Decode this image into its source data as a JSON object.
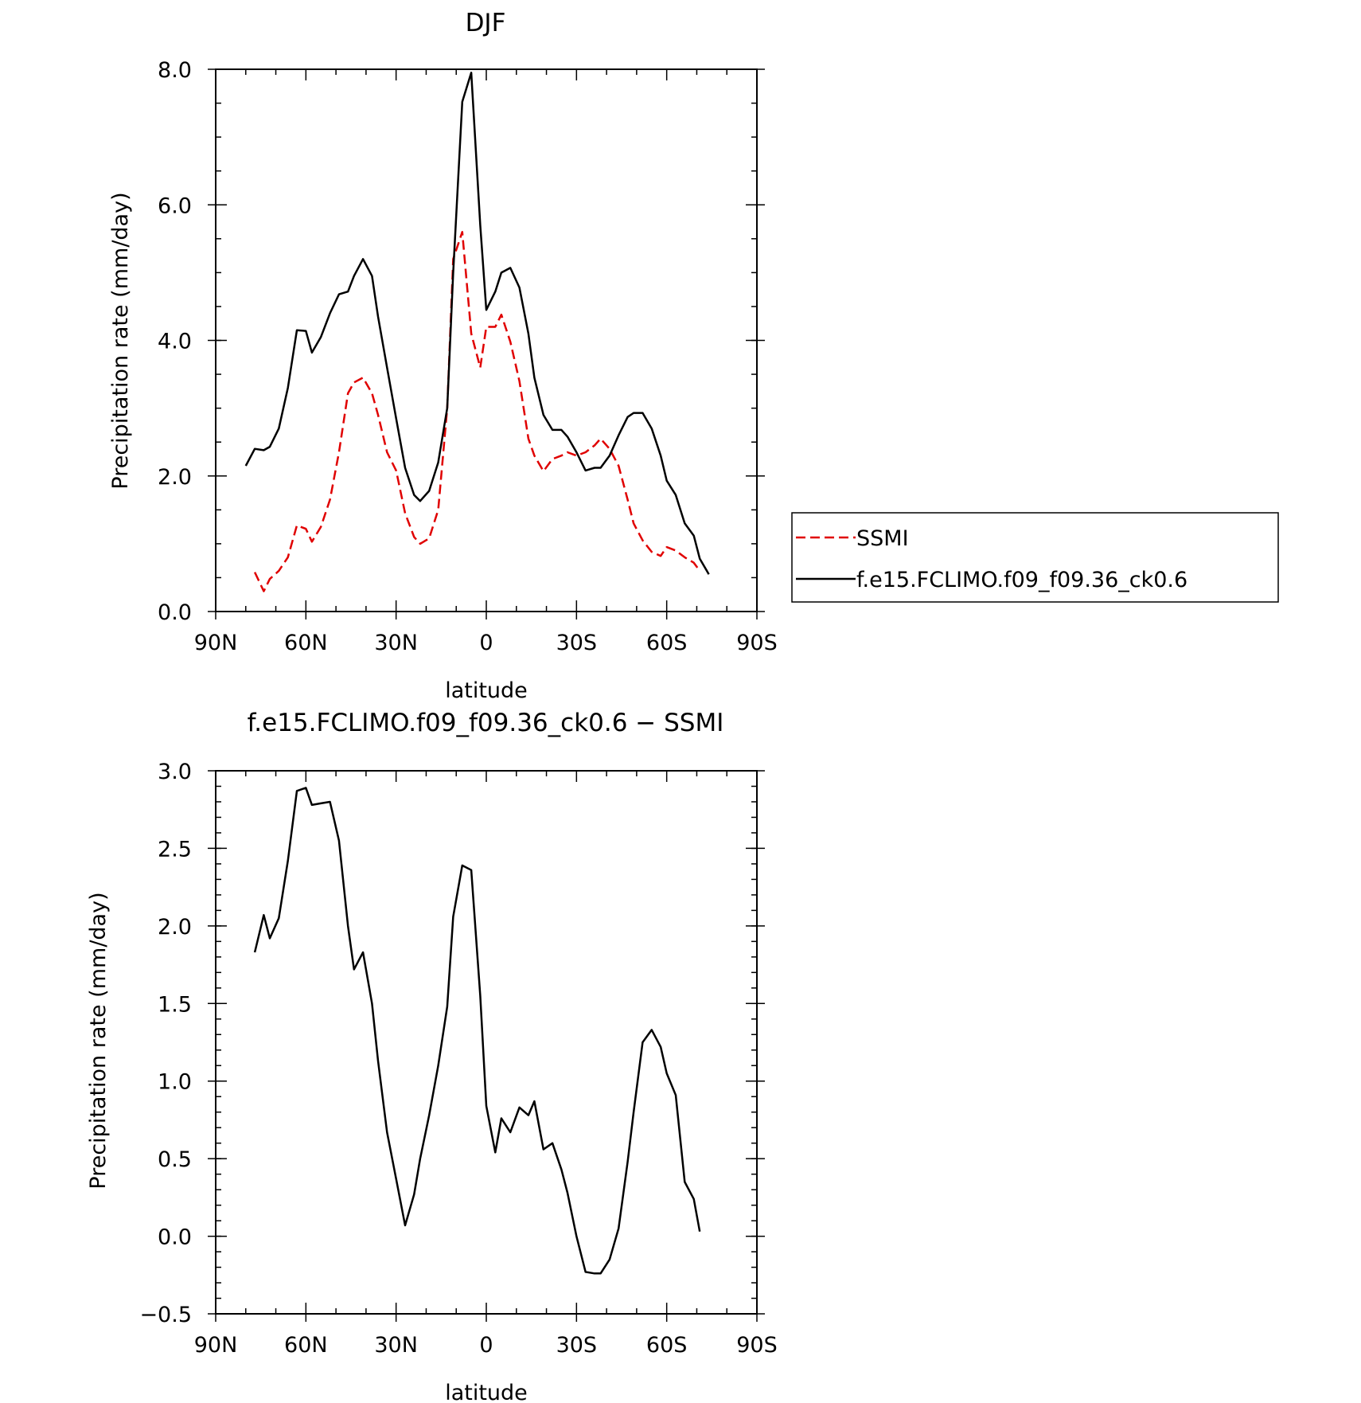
{
  "chart_data": [
    {
      "type": "line",
      "title": "DJF",
      "xlabel": "latitude",
      "ylabel": "Precipitation rate (mm/day)",
      "xlim": [
        -90,
        90
      ],
      "ylim": [
        0,
        8
      ],
      "xticks": [
        {
          "value": -90,
          "label": "90N"
        },
        {
          "value": -60,
          "label": "60N"
        },
        {
          "value": -30,
          "label": "30N"
        },
        {
          "value": 0,
          "label": "0"
        },
        {
          "value": 30,
          "label": "30S"
        },
        {
          "value": 60,
          "label": "60S"
        },
        {
          "value": 90,
          "label": "90S"
        }
      ],
      "yticks": [
        {
          "value": 0,
          "label": "0.0"
        },
        {
          "value": 2,
          "label": "2.0"
        },
        {
          "value": 4,
          "label": "4.0"
        },
        {
          "value": 6,
          "label": "6.0"
        },
        {
          "value": 8,
          "label": "8.0"
        }
      ],
      "legend": {
        "placement": "right, outside plot",
        "border": true
      },
      "series": [
        {
          "name": "SSMI",
          "color": "#e00000",
          "dash": true,
          "x": [
            -77,
            -74,
            -72,
            -69,
            -66,
            -63,
            -60,
            -58,
            -55,
            -52,
            -49,
            -46,
            -44,
            -41,
            -38,
            -36,
            -33,
            -30,
            -27,
            -24,
            -22,
            -19,
            -16,
            -13,
            -11,
            -8,
            -5,
            -2,
            0,
            3,
            5,
            8,
            11,
            14,
            16,
            19,
            22,
            25,
            27,
            30,
            33,
            36,
            38,
            41,
            44,
            47,
            49,
            52,
            55,
            58,
            60,
            63,
            66,
            69,
            71,
            74,
            77
          ],
          "y": [
            0.58,
            0.3,
            0.48,
            0.6,
            0.8,
            1.27,
            1.22,
            1.03,
            1.25,
            1.65,
            2.35,
            3.22,
            3.38,
            3.45,
            3.22,
            2.9,
            2.35,
            2.08,
            1.45,
            1.1,
            1.0,
            1.08,
            1.5,
            3.0,
            5.2,
            5.6,
            4.1,
            3.6,
            4.2,
            4.2,
            4.38,
            3.98,
            3.4,
            2.55,
            2.3,
            2.07,
            2.25,
            2.3,
            2.35,
            2.3,
            2.35,
            2.45,
            2.55,
            2.4,
            2.15,
            1.65,
            1.3,
            1.05,
            0.88,
            0.82,
            0.95,
            0.9,
            0.8,
            0.72,
            0.6,
            null,
            null
          ]
        },
        {
          "name": "f.e15.FCLIMO.f09_f09.36_ck0.6",
          "color": "#000000",
          "dash": false,
          "x": [
            -80,
            -77,
            -74,
            -72,
            -69,
            -66,
            -63,
            -60,
            -58,
            -55,
            -52,
            -49,
            -46,
            -44,
            -41,
            -38,
            -36,
            -33,
            -30,
            -27,
            -24,
            -22,
            -19,
            -16,
            -13,
            -11,
            -8,
            -5,
            -2,
            0,
            3,
            5,
            8,
            11,
            14,
            16,
            19,
            22,
            25,
            27,
            30,
            33,
            36,
            38,
            41,
            44,
            47,
            49,
            52,
            55,
            58,
            60,
            63,
            66,
            69,
            71,
            74,
            77
          ],
          "y": [
            2.15,
            2.4,
            2.38,
            2.43,
            2.7,
            3.3,
            4.15,
            4.14,
            3.82,
            4.05,
            4.4,
            4.68,
            4.72,
            4.95,
            5.2,
            4.95,
            4.35,
            3.6,
            2.85,
            2.12,
            1.72,
            1.63,
            1.78,
            2.2,
            3.0,
            5.0,
            7.52,
            7.95,
            5.7,
            4.45,
            4.72,
            5.0,
            5.07,
            4.78,
            4.1,
            3.45,
            2.9,
            2.68,
            2.68,
            2.58,
            2.35,
            2.08,
            2.12,
            2.12,
            2.3,
            2.6,
            2.87,
            2.93,
            2.93,
            2.7,
            2.3,
            1.93,
            1.72,
            1.3,
            1.12,
            0.78,
            0.55,
            null
          ]
        }
      ]
    },
    {
      "type": "line",
      "title": "f.e15.FCLIMO.f09_f09.36_ck0.6 − SSMI",
      "xlabel": "latitude",
      "ylabel": "Precipitation rate (mm/day)",
      "xlim": [
        -90,
        90
      ],
      "ylim": [
        -0.5,
        3.0
      ],
      "xticks": [
        {
          "value": -90,
          "label": "90N"
        },
        {
          "value": -60,
          "label": "60N"
        },
        {
          "value": -30,
          "label": "30N"
        },
        {
          "value": 0,
          "label": "0"
        },
        {
          "value": 30,
          "label": "30S"
        },
        {
          "value": 60,
          "label": "60S"
        },
        {
          "value": 90,
          "label": "90S"
        }
      ],
      "yticks": [
        {
          "value": -0.5,
          "label": "−0.5"
        },
        {
          "value": 0.0,
          "label": "0.0"
        },
        {
          "value": 0.5,
          "label": "0.5"
        },
        {
          "value": 1.0,
          "label": "1.0"
        },
        {
          "value": 1.5,
          "label": "1.5"
        },
        {
          "value": 2.0,
          "label": "2.0"
        },
        {
          "value": 2.5,
          "label": "2.5"
        },
        {
          "value": 3.0,
          "label": "3.0"
        }
      ],
      "series": [
        {
          "color": "#000000",
          "dash": false,
          "x": [
            -77,
            -74,
            -72,
            -69,
            -66,
            -63,
            -60,
            -58,
            -55,
            -52,
            -49,
            -46,
            -44,
            -41,
            -38,
            -36,
            -33,
            -30,
            -27,
            -24,
            -22,
            -19,
            -16,
            -13,
            -11,
            -8,
            -5,
            -2,
            0,
            3,
            5,
            8,
            11,
            14,
            16,
            19,
            22,
            25,
            27,
            30,
            33,
            36,
            38,
            41,
            44,
            47,
            49,
            52,
            55,
            58,
            60,
            63,
            66,
            69,
            71,
            74
          ],
          "y": [
            1.83,
            2.07,
            1.92,
            2.05,
            2.42,
            2.87,
            2.89,
            2.78,
            2.79,
            2.8,
            2.55,
            2.0,
            1.72,
            1.83,
            1.5,
            1.13,
            0.67,
            0.37,
            0.07,
            0.27,
            0.5,
            0.78,
            1.1,
            1.48,
            2.06,
            2.39,
            2.36,
            1.55,
            0.84,
            0.54,
            0.76,
            0.67,
            0.83,
            0.78,
            0.87,
            0.56,
            0.6,
            0.43,
            0.28,
            0.0,
            -0.23,
            -0.24,
            -0.24,
            -0.15,
            0.05,
            0.48,
            0.8,
            1.25,
            1.33,
            1.22,
            1.05,
            0.91,
            0.35,
            0.24,
            0.03,
            null
          ]
        }
      ]
    }
  ]
}
